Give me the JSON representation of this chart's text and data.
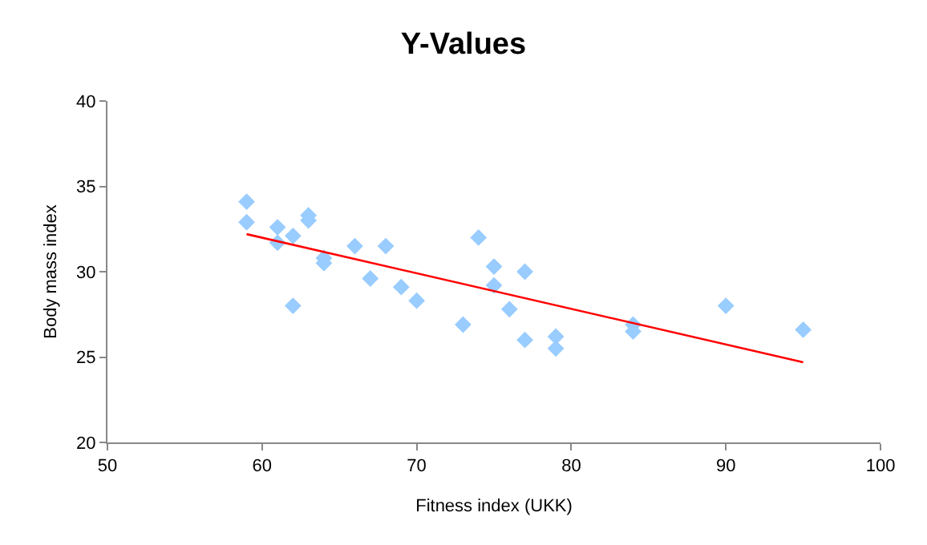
{
  "chart_data": {
    "type": "scatter",
    "title": "Y-Values",
    "xlabel": "Fitness index (UKK)",
    "ylabel": "Body mass index",
    "xlim": [
      50,
      100
    ],
    "xticks": [
      50,
      60,
      70,
      80,
      90,
      100
    ],
    "ylim": [
      20,
      40
    ],
    "yticks": [
      20,
      25,
      30,
      35,
      40
    ],
    "grid": false,
    "series": [
      {
        "marker": "diamond",
        "color": "#99ccff",
        "x": [
          59,
          59,
          61,
          61,
          62,
          62,
          63,
          63,
          64,
          64,
          66,
          67,
          68,
          69,
          70,
          73,
          74,
          75,
          75,
          76,
          77,
          77,
          79,
          79,
          84,
          84,
          90,
          95
        ],
        "values": [
          34.1,
          32.9,
          32.6,
          31.7,
          32.1,
          28.0,
          33.3,
          33.0,
          30.8,
          30.5,
          31.5,
          29.6,
          31.5,
          29.1,
          28.3,
          26.9,
          32.0,
          30.3,
          29.2,
          27.8,
          30.0,
          26.0,
          26.2,
          25.5,
          26.9,
          26.5,
          28.0,
          26.6
        ]
      },
      {
        "type": "line",
        "marker": "none",
        "color": "#ff0000",
        "x": [
          59,
          95
        ],
        "values": [
          32.2,
          24.7
        ]
      }
    ]
  }
}
